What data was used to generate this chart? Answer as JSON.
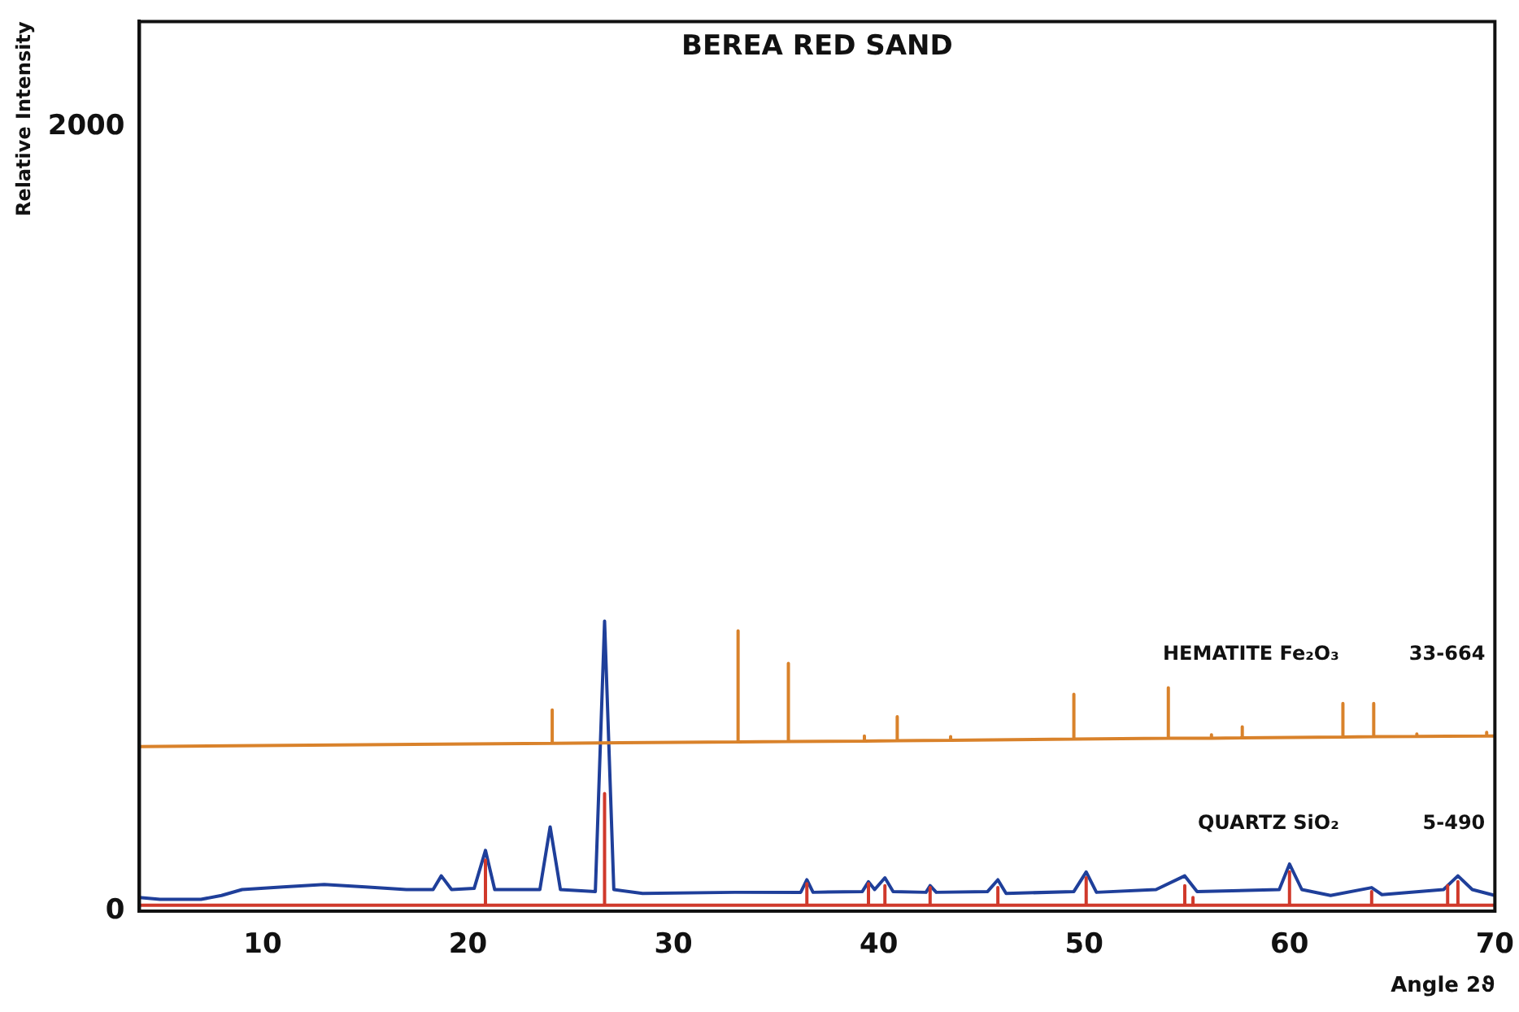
{
  "chart_data": {
    "type": "line",
    "title": "BEREA RED SAND",
    "xlabel": "Angle 2ϑ",
    "ylabel": "Relative Intensity",
    "xlim": [
      4,
      70
    ],
    "xticks": [
      10,
      20,
      30,
      40,
      50,
      60,
      70
    ],
    "ylim": [
      0,
      2270
    ],
    "yticks": [
      0,
      2000
    ],
    "grid": false,
    "legend": false,
    "marker": "none",
    "line_style": "solid",
    "series": [
      {
        "name": "HEMATITE Fe₂O₃",
        "color": "#d9822b",
        "x": [
          4,
          24.1,
          24.1,
          24.1,
          33.15,
          33.15,
          33.15,
          35.6,
          35.6,
          35.6,
          39.3,
          39.3,
          39.3,
          40.9,
          40.9,
          40.9,
          43.5,
          43.5,
          43.5,
          49.5,
          49.5,
          49.5,
          54.1,
          54.1,
          54.1,
          56.2,
          56.2,
          56.2,
          57.7,
          57.7,
          57.7,
          62.6,
          62.6,
          62.6,
          64.1,
          64.1,
          64.1,
          66.2,
          66.2,
          66.2,
          69.6,
          69.6,
          69.6,
          70
        ],
        "values": [
          420,
          428,
          513,
          428,
          432,
          715,
          432,
          433,
          632,
          433,
          434,
          447,
          434,
          435,
          496,
          435,
          436,
          445,
          436,
          439,
          553,
          439,
          441,
          570,
          441,
          441,
          450,
          441,
          442,
          470,
          442,
          444,
          530,
          444,
          445,
          530,
          445,
          446,
          452,
          446,
          447,
          456,
          447,
          447
        ]
      },
      {
        "name": "QUARTZ SiO₂",
        "color": "#d0392b",
        "x": [
          4,
          20.85,
          20.85,
          20.85,
          26.65,
          26.65,
          26.65,
          36.5,
          36.5,
          36.5,
          39.5,
          39.5,
          39.5,
          40.3,
          40.3,
          40.3,
          42.5,
          42.5,
          42.5,
          45.8,
          45.8,
          45.8,
          50.1,
          50.1,
          50.1,
          54.9,
          54.9,
          54.9,
          55.3,
          55.3,
          55.3,
          60,
          60,
          60,
          64,
          64,
          64,
          67.7,
          67.7,
          67.7,
          68.2,
          68.2,
          68.2,
          70
        ],
        "values": [
          15,
          15,
          130,
          15,
          15,
          300,
          15,
          15,
          70,
          15,
          15,
          70,
          15,
          15,
          65,
          15,
          15,
          60,
          15,
          15,
          60,
          15,
          15,
          85,
          15,
          15,
          65,
          15,
          15,
          35,
          15,
          15,
          100,
          15,
          15,
          50,
          15,
          15,
          65,
          15,
          15,
          75,
          15,
          15
        ]
      },
      {
        "color": "#1f3f9a",
        "x": [
          4,
          5,
          7,
          8,
          9,
          11,
          13,
          15,
          17,
          18.3,
          18.7,
          19.2,
          20.3,
          20.85,
          21.3,
          23.5,
          24,
          24.5,
          26.2,
          26.65,
          27.1,
          28.5,
          33,
          36.2,
          36.5,
          36.8,
          39.2,
          39.5,
          39.8,
          40.3,
          40.7,
          42.3,
          42.5,
          42.8,
          45.3,
          45.8,
          46.2,
          49.5,
          50.1,
          50.6,
          53.5,
          54.9,
          55.5,
          59.5,
          60,
          60.6,
          62,
          64,
          64.5,
          67.5,
          68.2,
          68.9,
          70
        ],
        "values": [
          35,
          30,
          30,
          40,
          55,
          62,
          68,
          62,
          55,
          55,
          90,
          55,
          58,
          155,
          55,
          55,
          215,
          55,
          50,
          740,
          55,
          45,
          48,
          48,
          80,
          48,
          50,
          75,
          55,
          85,
          50,
          48,
          65,
          48,
          50,
          80,
          45,
          50,
          100,
          48,
          55,
          90,
          50,
          55,
          120,
          55,
          40,
          60,
          42,
          55,
          90,
          55,
          40
        ]
      }
    ],
    "annotations": [
      "33-664",
      "5-490"
    ]
  }
}
